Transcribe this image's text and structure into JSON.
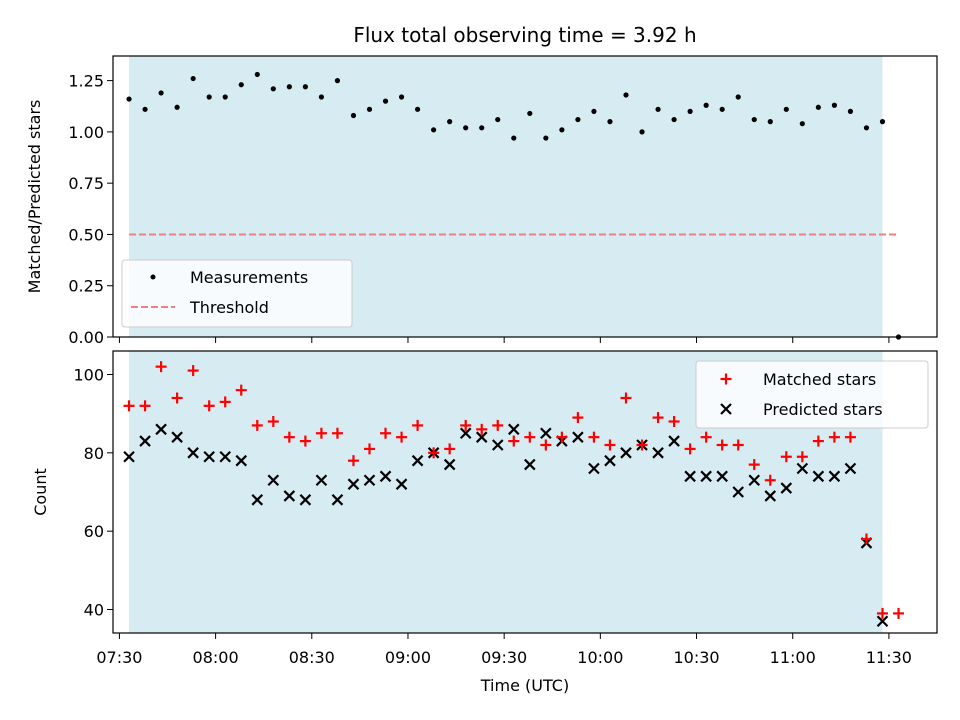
{
  "chart_data": [
    {
      "type": "scatter",
      "title": "Flux total observing time = 3.92 h",
      "xlabel": "",
      "ylabel": "Matched/Predicted stars",
      "xlim": [
        "07:28",
        "11:45"
      ],
      "ylim": [
        0,
        1.37
      ],
      "yticks": [
        "0.00",
        "0.25",
        "0.50",
        "0.75",
        "1.00",
        "1.25"
      ],
      "shaded_span": [
        "07:33",
        "11:28"
      ],
      "shade_color": "#add8e6",
      "legend_position": "lower-left",
      "series": [
        {
          "name": "Measurements",
          "marker": "dot",
          "color": "#000000",
          "x": [
            "07:33",
            "07:38",
            "07:43",
            "07:48",
            "07:53",
            "07:58",
            "08:03",
            "08:08",
            "08:13",
            "08:18",
            "08:23",
            "08:28",
            "08:33",
            "08:38",
            "08:43",
            "08:48",
            "08:53",
            "08:58",
            "09:03",
            "09:08",
            "09:13",
            "09:18",
            "09:23",
            "09:28",
            "09:33",
            "09:38",
            "09:43",
            "09:48",
            "09:53",
            "09:58",
            "10:03",
            "10:08",
            "10:13",
            "10:18",
            "10:23",
            "10:28",
            "10:33",
            "10:38",
            "10:43",
            "10:48",
            "10:53",
            "10:58",
            "11:03",
            "11:08",
            "11:13",
            "11:18",
            "11:23",
            "11:28",
            "11:33"
          ],
          "y": [
            1.16,
            1.11,
            1.19,
            1.12,
            1.26,
            1.17,
            1.17,
            1.23,
            1.28,
            1.21,
            1.22,
            1.22,
            1.17,
            1.25,
            1.08,
            1.11,
            1.15,
            1.17,
            1.11,
            1.01,
            1.05,
            1.02,
            1.02,
            1.06,
            0.97,
            1.09,
            0.97,
            1.01,
            1.06,
            1.1,
            1.05,
            1.18,
            1.0,
            1.11,
            1.06,
            1.1,
            1.13,
            1.11,
            1.17,
            1.06,
            1.05,
            1.11,
            1.04,
            1.12,
            1.13,
            1.1,
            1.02,
            1.05,
            0.0
          ]
        },
        {
          "name": "Threshold",
          "marker": "dashed-line",
          "color": "#f08080",
          "x": [
            "07:33",
            "11:33"
          ],
          "y": [
            0.5,
            0.5
          ]
        }
      ]
    },
    {
      "type": "scatter",
      "title": "",
      "xlabel": "Time (UTC)",
      "ylabel": "Count",
      "xlim": [
        "07:28",
        "11:45"
      ],
      "ylim": [
        34,
        106
      ],
      "yticks": [
        "40",
        "60",
        "80",
        "100"
      ],
      "xticks": [
        "07:30",
        "08:00",
        "08:30",
        "09:00",
        "09:30",
        "10:00",
        "10:30",
        "11:00",
        "11:30"
      ],
      "shaded_span": [
        "07:33",
        "11:28"
      ],
      "shade_color": "#add8e6",
      "legend_position": "upper-right",
      "x": [
        "07:33",
        "07:38",
        "07:43",
        "07:48",
        "07:53",
        "07:58",
        "08:03",
        "08:08",
        "08:13",
        "08:18",
        "08:23",
        "08:28",
        "08:33",
        "08:38",
        "08:43",
        "08:48",
        "08:53",
        "08:58",
        "09:03",
        "09:08",
        "09:13",
        "09:18",
        "09:23",
        "09:28",
        "09:33",
        "09:38",
        "09:43",
        "09:48",
        "09:53",
        "09:58",
        "10:03",
        "10:08",
        "10:13",
        "10:18",
        "10:23",
        "10:28",
        "10:33",
        "10:38",
        "10:43",
        "10:48",
        "10:53",
        "10:58",
        "11:03",
        "11:08",
        "11:13",
        "11:18",
        "11:23",
        "11:28",
        "11:33"
      ],
      "series": [
        {
          "name": "Matched stars",
          "marker": "plus",
          "color": "#ff0000",
          "y": [
            92,
            92,
            102,
            94,
            101,
            92,
            93,
            96,
            87,
            88,
            84,
            83,
            85,
            85,
            78,
            81,
            85,
            84,
            87,
            80,
            81,
            87,
            86,
            87,
            83,
            84,
            82,
            84,
            89,
            84,
            82,
            94,
            82,
            89,
            88,
            81,
            84,
            82,
            82,
            77,
            73,
            79,
            79,
            83,
            84,
            84,
            58,
            39,
            39
          ]
        },
        {
          "name": "Predicted stars",
          "marker": "x",
          "color": "#000000",
          "y": [
            79,
            83,
            86,
            84,
            80,
            79,
            79,
            78,
            68,
            73,
            69,
            68,
            73,
            68,
            72,
            73,
            74,
            72,
            78,
            80,
            77,
            85,
            84,
            82,
            86,
            77,
            85,
            83,
            84,
            76,
            78,
            80,
            82,
            80,
            83,
            74,
            74,
            74,
            70,
            73,
            69,
            71,
            76,
            74,
            74,
            76,
            57,
            37,
            null
          ]
        }
      ]
    }
  ]
}
